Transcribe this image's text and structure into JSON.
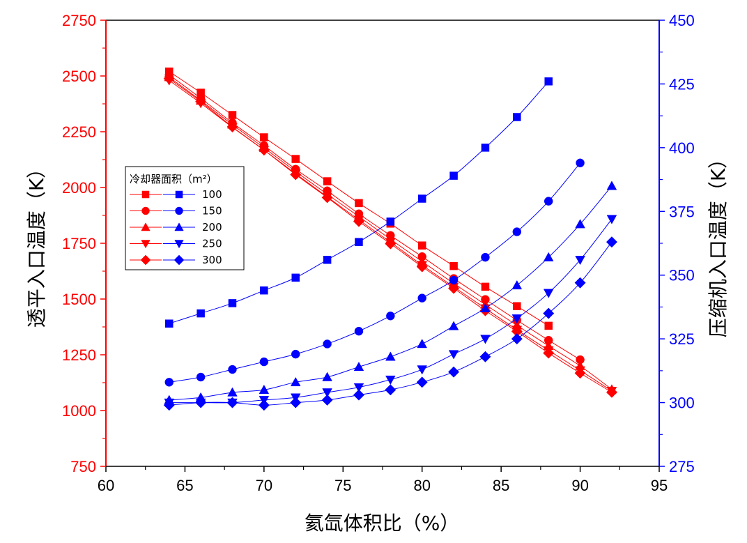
{
  "chart_data": {
    "type": "line",
    "xlabel": "氦氙体积比（%）",
    "ylabel_left": "透平入口温度（K）",
    "ylabel_right": "压缩机入口温度（K）",
    "xlim": [
      60,
      95
    ],
    "xticks": [
      60,
      65,
      70,
      75,
      80,
      85,
      90,
      95
    ],
    "ylim_left": [
      750,
      2750
    ],
    "yticks_left": [
      750,
      1000,
      1250,
      1500,
      1750,
      2000,
      2250,
      2500,
      2750
    ],
    "ylim_right": [
      275,
      450
    ],
    "yticks_right": [
      275,
      300,
      325,
      350,
      375,
      400,
      425,
      450
    ],
    "left_color": "#ff0000",
    "right_color": "#0000ff",
    "legend": {
      "title": "冷却器面积（m²）",
      "entries": [
        "100",
        "150",
        "200",
        "250",
        "300"
      ],
      "placement": "upper-left"
    },
    "series": [
      {
        "name": "100",
        "axis": "left",
        "marker": "square",
        "x": [
          64,
          66,
          68,
          70,
          72,
          74,
          76,
          78,
          80,
          82,
          84,
          86,
          88
        ],
        "values": [
          2520,
          2425,
          2325,
          2225,
          2128,
          2028,
          1930,
          1838,
          1740,
          1648,
          1555,
          1468,
          1380
        ]
      },
      {
        "name": "150",
        "axis": "left",
        "marker": "circle",
        "x": [
          64,
          66,
          68,
          70,
          72,
          74,
          76,
          78,
          80,
          82,
          84,
          86,
          88,
          90
        ],
        "values": [
          2505,
          2400,
          2290,
          2188,
          2082,
          1985,
          1882,
          1785,
          1690,
          1592,
          1498,
          1405,
          1315,
          1228
        ]
      },
      {
        "name": "200",
        "axis": "left",
        "marker": "triangle-up",
        "x": [
          64,
          66,
          68,
          70,
          72,
          74,
          76,
          78,
          80,
          82,
          84,
          86,
          88,
          90,
          92
        ],
        "values": [
          2495,
          2390,
          2282,
          2178,
          2072,
          1970,
          1870,
          1768,
          1668,
          1570,
          1475,
          1382,
          1290,
          1200,
          1095
        ]
      },
      {
        "name": "250",
        "axis": "left",
        "marker": "triangle-down",
        "x": [
          64,
          66,
          68,
          70,
          72,
          74,
          76,
          78,
          80,
          82,
          84,
          86,
          88,
          90,
          92
        ],
        "values": [
          2480,
          2378,
          2270,
          2168,
          2062,
          1958,
          1855,
          1755,
          1652,
          1555,
          1458,
          1362,
          1270,
          1180,
          1088
        ]
      },
      {
        "name": "300",
        "axis": "left",
        "marker": "diamond",
        "x": [
          64,
          66,
          68,
          70,
          72,
          74,
          76,
          78,
          80,
          82,
          84,
          86,
          88,
          90,
          92
        ],
        "values": [
          2488,
          2385,
          2272,
          2168,
          2058,
          1955,
          1848,
          1748,
          1645,
          1548,
          1448,
          1355,
          1258,
          1168,
          1082
        ]
      },
      {
        "name": "100",
        "axis": "right",
        "marker": "square",
        "x": [
          64,
          66,
          68,
          70,
          72,
          74,
          76,
          78,
          80,
          82,
          84,
          86,
          88
        ],
        "values": [
          331,
          335,
          339,
          344,
          349,
          356,
          363,
          371,
          380,
          389,
          400,
          412,
          426
        ]
      },
      {
        "name": "150",
        "axis": "right",
        "marker": "circle",
        "x": [
          64,
          66,
          68,
          70,
          72,
          74,
          76,
          78,
          80,
          82,
          84,
          86,
          88,
          90
        ],
        "values": [
          308,
          310,
          313,
          316,
          319,
          323,
          328,
          334,
          341,
          348,
          357,
          367,
          379,
          394
        ]
      },
      {
        "name": "200",
        "axis": "right",
        "marker": "triangle-up",
        "x": [
          64,
          66,
          68,
          70,
          72,
          74,
          76,
          78,
          80,
          82,
          84,
          86,
          88,
          90,
          92
        ],
        "values": [
          301,
          302,
          304,
          305,
          308,
          310,
          314,
          318,
          323,
          330,
          337,
          346,
          357,
          370,
          385
        ]
      },
      {
        "name": "250",
        "axis": "right",
        "marker": "triangle-down",
        "x": [
          64,
          66,
          68,
          70,
          72,
          74,
          76,
          78,
          80,
          82,
          84,
          86,
          88,
          90,
          92
        ],
        "values": [
          300,
          300,
          300,
          301,
          302,
          304,
          306,
          309,
          313,
          319,
          325,
          333,
          343,
          356,
          372
        ]
      },
      {
        "name": "300",
        "axis": "right",
        "marker": "diamond",
        "x": [
          64,
          66,
          68,
          70,
          72,
          74,
          76,
          78,
          80,
          82,
          84,
          86,
          88,
          90,
          92
        ],
        "values": [
          299,
          300,
          300,
          299,
          300,
          301,
          303,
          305,
          308,
          312,
          318,
          325,
          335,
          347,
          363
        ]
      }
    ]
  }
}
